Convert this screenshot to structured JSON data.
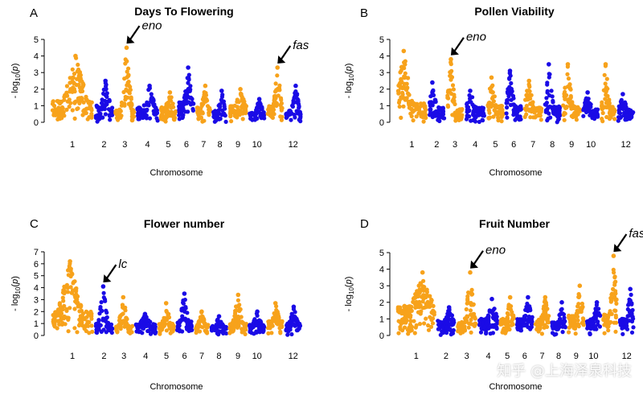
{
  "watermark": "知乎 @上海泽泉科技",
  "colors": {
    "odd": "#F7A21B",
    "even": "#1A0BE6",
    "axis": "#000000"
  },
  "chart_data": [
    {
      "type": "scatter",
      "panel_letter": "A",
      "title": "Days To Flowering",
      "xlabel": "Chromosome",
      "ylabel": "-log10(p)",
      "ylim": [
        0,
        5
      ],
      "yticks": [
        0,
        1,
        2,
        3,
        4,
        5
      ],
      "chromosomes": [
        "1",
        "2",
        "3",
        "4",
        "5",
        "6",
        "7",
        "8",
        "9",
        "10",
        "11",
        "12"
      ],
      "x_tick_labels": [
        "1",
        "2",
        "3",
        "4",
        "5",
        "6",
        "7",
        "8",
        "9",
        "10",
        "12"
      ],
      "chrom_lengths": [
        2.4,
        1.1,
        1.2,
        1.3,
        1.0,
        1.0,
        0.9,
        0.9,
        1.1,
        1.0,
        1.0,
        1.0
      ],
      "chrom_peaks": [
        4.0,
        2.5,
        4.5,
        2.2,
        1.8,
        3.3,
        2.2,
        1.9,
        2.0,
        1.4,
        3.3,
        2.2
      ],
      "chrom_base": [
        1.3,
        1.0,
        0.8,
        0.9,
        0.9,
        1.2,
        0.9,
        0.7,
        1.0,
        0.6,
        1.0,
        0.7
      ],
      "annotations": [
        {
          "label": "eno",
          "chrom": "3",
          "value": 4.5
        },
        {
          "label": "fas",
          "chrom": "11",
          "value": 3.3
        }
      ]
    },
    {
      "type": "scatter",
      "panel_letter": "B",
      "title": "Pollen Viability",
      "xlabel": "Chromosome",
      "ylabel": "-log10(p)",
      "ylim": [
        0,
        5
      ],
      "yticks": [
        0,
        1,
        2,
        3,
        4,
        5
      ],
      "chromosomes": [
        "1",
        "2",
        "3",
        "4",
        "5",
        "6",
        "7",
        "8",
        "9",
        "10",
        "11",
        "12"
      ],
      "x_tick_labels": [
        "1",
        "2",
        "3",
        "4",
        "5",
        "6",
        "7",
        "8",
        "9",
        "10",
        "12"
      ],
      "chrom_lengths": [
        1.7,
        1.0,
        1.0,
        1.2,
        1.0,
        1.0,
        1.1,
        1.0,
        1.1,
        1.0,
        0.9,
        1.0
      ],
      "chrom_peaks": [
        4.3,
        2.4,
        3.8,
        1.9,
        2.7,
        3.1,
        2.5,
        3.5,
        3.5,
        1.8,
        3.5,
        1.7
      ],
      "chrom_base": [
        1.2,
        0.9,
        0.8,
        0.9,
        1.0,
        1.0,
        0.9,
        1.0,
        1.0,
        0.8,
        1.0,
        0.8
      ],
      "annotations": [
        {
          "label": "eno",
          "chrom": "3",
          "value": 3.8
        }
      ]
    },
    {
      "type": "scatter",
      "panel_letter": "C",
      "title": "Flower number",
      "xlabel": "Chromosome",
      "ylabel": "-log10(p)",
      "ylim": [
        0,
        7
      ],
      "yticks": [
        0,
        1,
        2,
        3,
        4,
        5,
        6,
        7
      ],
      "chromosomes": [
        "1",
        "2",
        "3",
        "4",
        "5",
        "6",
        "7",
        "8",
        "9",
        "10",
        "11",
        "12"
      ],
      "x_tick_labels": [
        "1",
        "2",
        "3",
        "4",
        "5",
        "6",
        "7",
        "8",
        "9",
        "10",
        "12"
      ],
      "chrom_lengths": [
        2.4,
        1.1,
        1.1,
        1.3,
        1.0,
        1.0,
        0.9,
        1.0,
        1.1,
        1.0,
        1.0,
        1.0
      ],
      "chrom_peaks": [
        6.2,
        4.1,
        3.2,
        1.8,
        2.7,
        3.5,
        2.0,
        1.6,
        3.4,
        2.0,
        2.7,
        2.4
      ],
      "chrom_base": [
        2.0,
        1.0,
        0.8,
        1.0,
        1.0,
        1.2,
        0.9,
        0.8,
        1.1,
        0.9,
        1.2,
        1.0
      ],
      "annotations": [
        {
          "label": "lc",
          "chrom": "2",
          "value": 4.1
        }
      ]
    },
    {
      "type": "scatter",
      "panel_letter": "D",
      "title": "Fruit Number",
      "xlabel": "Chromosome",
      "ylabel": "-log10(p)",
      "ylim": [
        0,
        5
      ],
      "yticks": [
        0,
        1,
        2,
        3,
        4,
        5
      ],
      "chromosomes": [
        "1",
        "2",
        "3",
        "4",
        "5",
        "6",
        "7",
        "8",
        "9",
        "10",
        "11",
        "12"
      ],
      "x_tick_labels": [
        "1",
        "2",
        "3",
        "4",
        "5",
        "6",
        "7",
        "8",
        "9",
        "10",
        "12"
      ],
      "chrom_lengths": [
        2.4,
        1.2,
        1.3,
        1.3,
        1.0,
        1.1,
        1.0,
        1.0,
        1.1,
        1.0,
        1.0,
        1.0
      ],
      "chrom_peaks": [
        3.8,
        1.7,
        3.8,
        2.2,
        2.3,
        2.3,
        2.3,
        2.0,
        3.0,
        2.0,
        4.8,
        2.8
      ],
      "chrom_base": [
        1.8,
        0.9,
        0.8,
        1.0,
        1.0,
        1.0,
        1.0,
        0.8,
        1.2,
        1.0,
        1.3,
        1.0
      ],
      "annotations": [
        {
          "label": "eno",
          "chrom": "3",
          "value": 3.8
        },
        {
          "label": "fas",
          "chrom": "11",
          "value": 4.8
        }
      ]
    }
  ]
}
